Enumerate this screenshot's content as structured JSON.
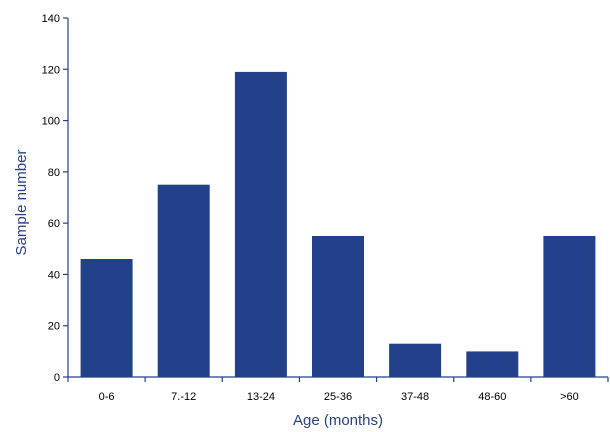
{
  "chart_data": {
    "type": "bar",
    "title": "",
    "xlabel": "Age (months)",
    "ylabel": "Sample number",
    "categories": [
      "0-6",
      "7.-12",
      "13-24",
      "25-36",
      "37-48",
      "48-60",
      ">60"
    ],
    "values": [
      46,
      75,
      119,
      55,
      13,
      10,
      55
    ],
    "ylim": [
      0,
      140
    ],
    "yticks": [
      0,
      20,
      40,
      60,
      80,
      100,
      120,
      140
    ],
    "grid": false,
    "legend": "none",
    "colors": {
      "bar": "#23418a",
      "axis": "#23418a",
      "axis_title": "#2a3f86",
      "tick_text": "#000000"
    }
  }
}
